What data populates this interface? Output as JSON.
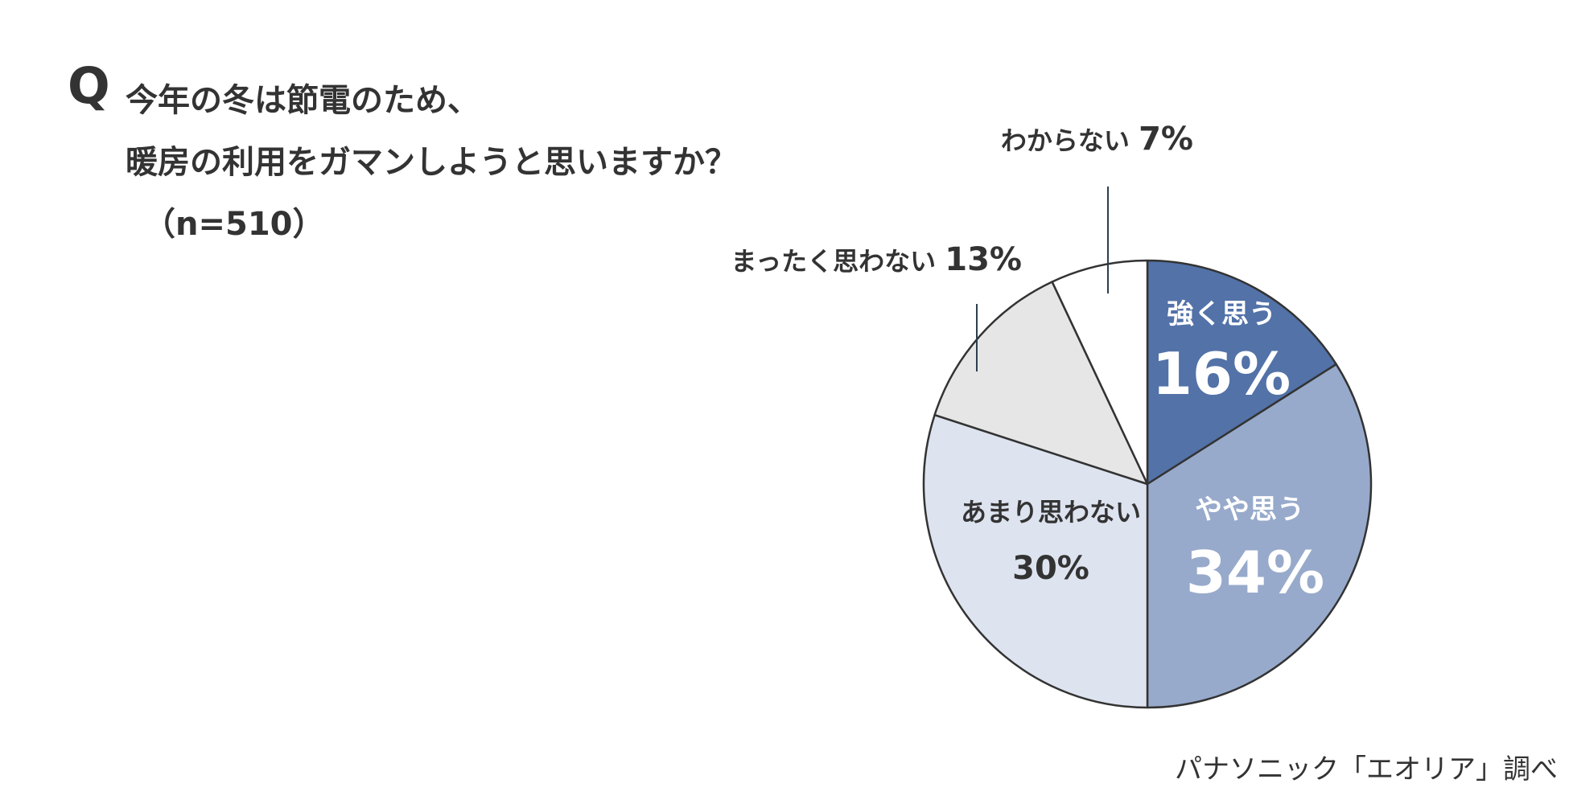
{
  "question": {
    "mark": "Q",
    "lines": [
      "今年の冬は節電のため、",
      "暖房の利用をガマンしようと思いますか？",
      "（n=510）"
    ]
  },
  "source": "パナソニック「エオリア」調べ",
  "chart_data": {
    "type": "pie",
    "title": "",
    "unit": "%",
    "slices": [
      {
        "label": "強く思う",
        "value": 16,
        "display": "16%",
        "color": "#5272a8",
        "text_color": "#ffffff"
      },
      {
        "label": "やや思う",
        "value": 34,
        "display": "34%",
        "color": "#97aacb",
        "text_color": "#ffffff"
      },
      {
        "label": "あまり思わない",
        "value": 30,
        "display": "30%",
        "color": "#dde3ef",
        "text_color": "#333333"
      },
      {
        "label": "まったく思わない",
        "value": 13,
        "display": "13%",
        "color": "#e6e6e6",
        "text_color": "#333333"
      },
      {
        "label": "わからない",
        "value": 7,
        "display": "7%",
        "color": "#ffffff",
        "text_color": "#333333"
      }
    ]
  }
}
